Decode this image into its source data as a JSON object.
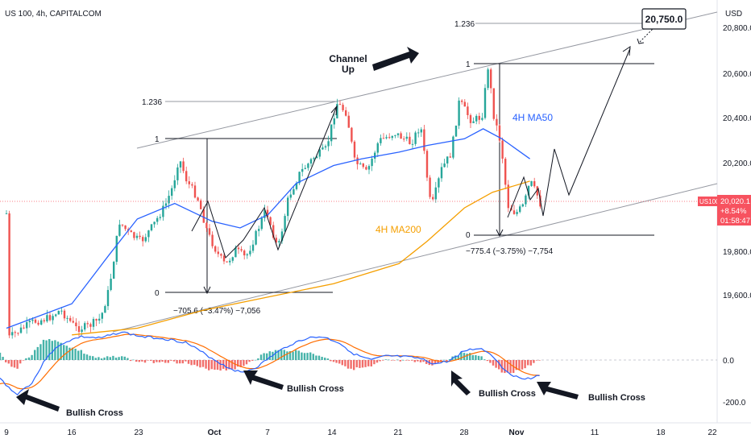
{
  "header": {
    "symbol_title": "US 100, 4h, CAPITALCOM",
    "currency": "USD"
  },
  "colors": {
    "up": "#26a69a",
    "down": "#ef5350",
    "ma50": "#2962ff",
    "ma200": "#f59f00",
    "macd": "#2962ff",
    "signal": "#ff6d00",
    "channel": "#9598a1",
    "price_line": "#f7525f"
  },
  "price_axis": {
    "labels": [
      "20,800.0",
      "20,600.0",
      "20,400.0",
      "20,200.0",
      "19,800.0",
      "19,600.0"
    ]
  },
  "macd_axis": {
    "labels": [
      "0.0",
      "-200.0"
    ]
  },
  "time_axis": {
    "labels": [
      "9",
      "16",
      "23",
      "Oct",
      "7",
      "14",
      "21",
      "28",
      "Nov",
      "11",
      "18",
      "22"
    ]
  },
  "price_tag": {
    "symbol": "US100",
    "price": "20,020.1",
    "change": "+8.54%",
    "countdown": "01:58:47"
  },
  "annotations": {
    "channel_up": "Channel Up",
    "target": "20,750.0",
    "ma50_label": "4H MA50",
    "ma200_label": "4H MA200",
    "fib_left": {
      "top": "1.236",
      "one": "1",
      "zero": "0"
    },
    "fib_right": {
      "top": "1.236",
      "one": "1",
      "zero": "0"
    },
    "measure_left": "−705.6 (−3.47%) −7,056",
    "measure_right": "−775.4 (−3.75%) −7,754",
    "bullish_cross": [
      "Bullish Cross",
      "Bullish Cross",
      "Bullish Cross",
      "Bullish Cross"
    ]
  },
  "chart_data": {
    "type": "line",
    "symbol": "US 100",
    "timeframe": "4h",
    "ylim": [
      19450,
      20900
    ],
    "series": [
      {
        "name": "4H MA50",
        "x": [
          "Sep 9",
          "Sep 16",
          "Sep 20",
          "Sep 23",
          "Sep 27",
          "Oct 1",
          "Oct 4",
          "Oct 7",
          "Oct 10",
          "Oct 14",
          "Oct 17",
          "Oct 21",
          "Oct 24",
          "Oct 28",
          "Oct 30",
          "Nov 1",
          "Nov 4"
        ],
        "values": [
          19450,
          19560,
          19780,
          19940,
          20010,
          19930,
          19900,
          19960,
          20100,
          20180,
          20210,
          20240,
          20270,
          20300,
          20345,
          20300,
          20210
        ]
      },
      {
        "name": "4H MA200",
        "x": [
          "Sep 16",
          "Sep 23",
          "Sep 30",
          "Oct 7",
          "Oct 14",
          "Oct 21",
          "Oct 24",
          "Oct 28",
          "Oct 31",
          "Nov 4"
        ],
        "values": [
          19420,
          19450,
          19530,
          19590,
          19650,
          19740,
          19840,
          19990,
          20060,
          20110
        ]
      }
    ],
    "last_price": 20020.1,
    "target": 20750.0,
    "measured_moves": [
      {
        "points": -705.6,
        "percent": -3.47
      },
      {
        "points": -775.4,
        "percent": -3.75
      }
    ],
    "macd_ylim": [
      -250,
      100
    ]
  }
}
